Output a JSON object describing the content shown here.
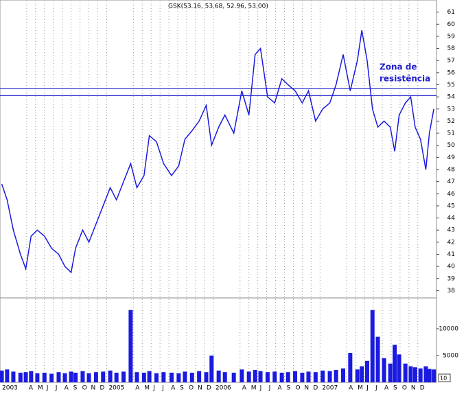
{
  "chart_data": {
    "type": "line",
    "title": "GSK(53.16, 53.68, 52.96, 53.00)",
    "annotation": [
      "Zona de",
      "resistência"
    ],
    "scale_note": "10",
    "grid": true,
    "xlim": [
      0,
      49.1
    ],
    "xticks": [
      {
        "value": 0,
        "label": "2003"
      },
      {
        "value": 3,
        "label": "A"
      },
      {
        "value": 4,
        "label": "M"
      },
      {
        "value": 5,
        "label": "J"
      },
      {
        "value": 6,
        "label": "J"
      },
      {
        "value": 7,
        "label": "A"
      },
      {
        "value": 8,
        "label": "S"
      },
      {
        "value": 9,
        "label": "O"
      },
      {
        "value": 10,
        "label": "N"
      },
      {
        "value": 11,
        "label": "D"
      },
      {
        "value": 12,
        "label": "2005"
      },
      {
        "value": 15,
        "label": "A"
      },
      {
        "value": 16,
        "label": "M"
      },
      {
        "value": 17,
        "label": "J"
      },
      {
        "value": 18,
        "label": "J"
      },
      {
        "value": 19,
        "label": "A"
      },
      {
        "value": 20,
        "label": "S"
      },
      {
        "value": 21,
        "label": "O"
      },
      {
        "value": 22,
        "label": "N"
      },
      {
        "value": 23,
        "label": "D"
      },
      {
        "value": 24,
        "label": "2006"
      },
      {
        "value": 27,
        "label": "A"
      },
      {
        "value": 28,
        "label": "M"
      },
      {
        "value": 29,
        "label": "J"
      },
      {
        "value": 30,
        "label": "J"
      },
      {
        "value": 31,
        "label": "A"
      },
      {
        "value": 32,
        "label": "S"
      },
      {
        "value": 33,
        "label": "O"
      },
      {
        "value": 34,
        "label": "N"
      },
      {
        "value": 35,
        "label": "D"
      },
      {
        "value": 36,
        "label": "2007"
      },
      {
        "value": 39,
        "label": "A"
      },
      {
        "value": 40,
        "label": "M"
      },
      {
        "value": 41,
        "label": "J"
      },
      {
        "value": 42,
        "label": "J"
      },
      {
        "value": 43,
        "label": "A"
      },
      {
        "value": 44,
        "label": "S"
      },
      {
        "value": 45,
        "label": "O"
      },
      {
        "value": 46,
        "label": "N"
      },
      {
        "value": 47,
        "label": "D"
      }
    ],
    "ylim": [
      37.4,
      62
    ],
    "yticks": [
      38,
      39,
      40,
      41,
      42,
      43,
      44,
      45,
      46,
      47,
      48,
      49,
      50,
      51,
      52,
      53,
      54,
      55,
      56,
      57,
      58,
      59,
      60,
      61
    ],
    "hlines": [
      54.7,
      54.1
    ],
    "hline_color": "#2323c8",
    "x": [
      0.2,
      0.8,
      1.5,
      2.3,
      2.9,
      3.5,
      4.2,
      5.0,
      5.8,
      6.6,
      7.3,
      8.0,
      8.5,
      9.3,
      10.0,
      10.8,
      11.6,
      12.4,
      13.1,
      13.9,
      14.7,
      15.4,
      16.2,
      16.8,
      17.6,
      18.4,
      19.3,
      20.1,
      20.8,
      21.6,
      22.4,
      23.2,
      23.8,
      24.6,
      25.3,
      26.3,
      27.2,
      28.0,
      28.7,
      29.3,
      30.1,
      30.9,
      31.7,
      32.4,
      33.2,
      34.0,
      34.7,
      35.5,
      36.3,
      37.1,
      37.8,
      38.6,
      39.4,
      40.2,
      40.7,
      41.3,
      41.9,
      42.5,
      43.2,
      43.9,
      44.4,
      44.9,
      45.6,
      46.2,
      46.7,
      47.3,
      47.9,
      48.3,
      48.8
    ],
    "series": [
      {
        "name": "GSK",
        "color": "#1a1ae0",
        "values": [
          46.8,
          45.5,
          43,
          41,
          39.8,
          42.5,
          43,
          42.5,
          41.5,
          41,
          40,
          39.5,
          41.5,
          43,
          42,
          43.5,
          45,
          46.5,
          45.5,
          47,
          48.5,
          46.5,
          47.5,
          50.8,
          50.3,
          48.5,
          47.5,
          48.3,
          50.5,
          51.2,
          52,
          53.3,
          50,
          51.5,
          52.5,
          51,
          54.5,
          52.5,
          57.5,
          58,
          54,
          53.5,
          55.5,
          55,
          54.5,
          53.5,
          54.5,
          52,
          53,
          53.5,
          55,
          57.5,
          54.5,
          57,
          59.5,
          57,
          53,
          51.5,
          52,
          51.5,
          49.5,
          52.5,
          53.5,
          54,
          51.5,
          50.5,
          48,
          51,
          53
        ]
      },
      {
        "name": "Volume",
        "color": "#1a1ae0",
        "axis": "y2",
        "values": [
          2200,
          2400,
          2000,
          1800,
          1900,
          2100,
          1700,
          1800,
          1600,
          1900,
          1700,
          2000,
          1800,
          2100,
          1700,
          1900,
          2000,
          2200,
          1800,
          2000,
          13500,
          1900,
          1800,
          2100,
          1700,
          1900,
          1800,
          1700,
          2000,
          1800,
          2100,
          1900,
          5000,
          2200,
          1900,
          1800,
          2400,
          2000,
          2300,
          2100,
          1900,
          2000,
          1800,
          1900,
          2100,
          1800,
          2000,
          1900,
          2200,
          2100,
          2300,
          2600,
          5500,
          2400,
          3000,
          4000,
          13500,
          8500,
          4500,
          3500,
          7000,
          5200,
          3500,
          3000,
          2800,
          2600,
          3000,
          2500,
          2400
        ]
      }
    ],
    "y2lim": [
      0,
      15500
    ],
    "y2ticks": [
      5000,
      10000
    ]
  }
}
